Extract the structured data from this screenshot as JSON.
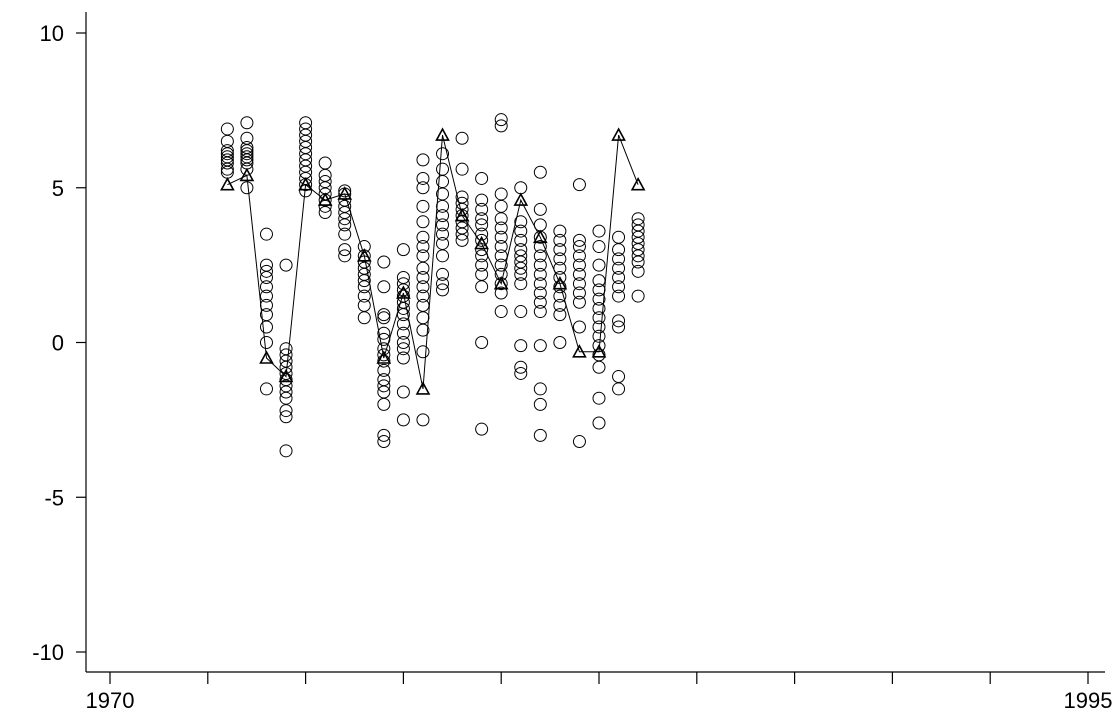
{
  "chart_data": {
    "type": "scatter",
    "title": "",
    "xlabel": "",
    "ylabel": "",
    "xlim": [
      1970,
      1995
    ],
    "ylim": [
      -10,
      10
    ],
    "x_ticks": [
      1970,
      1972.5,
      1975,
      1977.5,
      1980,
      1982.5,
      1985,
      1987.5,
      1990,
      1992.5,
      1995
    ],
    "x_tick_labels": [
      "1970",
      "",
      "",
      "",
      "",
      "",
      "",
      "",
      "",
      "",
      "1995"
    ],
    "y_ticks": [
      -10,
      -5,
      0,
      5,
      10
    ],
    "y_tick_labels": [
      "-10",
      "-5",
      "0",
      "5",
      "10"
    ],
    "grid": false,
    "legend": "none",
    "series": [
      {
        "marker": "circle",
        "points": [
          [
            1973,
            5.5
          ],
          [
            1973,
            5.6
          ],
          [
            1973,
            5.8
          ],
          [
            1973,
            5.9
          ],
          [
            1973,
            6.0
          ],
          [
            1973,
            6.1
          ],
          [
            1973,
            6.2
          ],
          [
            1973,
            6.5
          ],
          [
            1973,
            6.9
          ],
          [
            1973.5,
            5.0
          ],
          [
            1973.5,
            5.6
          ],
          [
            1973.5,
            5.8
          ],
          [
            1973.5,
            5.9
          ],
          [
            1973.5,
            6.0
          ],
          [
            1973.5,
            6.1
          ],
          [
            1973.5,
            6.2
          ],
          [
            1973.5,
            6.3
          ],
          [
            1973.5,
            6.6
          ],
          [
            1973.5,
            7.1
          ],
          [
            1974,
            -1.5
          ],
          [
            1974,
            0.0
          ],
          [
            1974,
            0.5
          ],
          [
            1974,
            0.9
          ],
          [
            1974,
            1.2
          ],
          [
            1974,
            1.5
          ],
          [
            1974,
            1.8
          ],
          [
            1974,
            2.1
          ],
          [
            1974,
            2.3
          ],
          [
            1974,
            2.5
          ],
          [
            1974,
            3.5
          ],
          [
            1974.5,
            -3.5
          ],
          [
            1974.5,
            -2.4
          ],
          [
            1974.5,
            -2.2
          ],
          [
            1974.5,
            -1.8
          ],
          [
            1974.5,
            -1.6
          ],
          [
            1974.5,
            -1.4
          ],
          [
            1974.5,
            -1.2
          ],
          [
            1974.5,
            -1.0
          ],
          [
            1974.5,
            -0.8
          ],
          [
            1974.5,
            -0.6
          ],
          [
            1974.5,
            -0.4
          ],
          [
            1974.5,
            -0.2
          ],
          [
            1974.5,
            2.5
          ],
          [
            1975,
            4.9
          ],
          [
            1975,
            5.1
          ],
          [
            1975,
            5.3
          ],
          [
            1975,
            5.5
          ],
          [
            1975,
            5.7
          ],
          [
            1975,
            5.9
          ],
          [
            1975,
            6.1
          ],
          [
            1975,
            6.3
          ],
          [
            1975,
            6.5
          ],
          [
            1975,
            6.7
          ],
          [
            1975,
            6.9
          ],
          [
            1975,
            7.1
          ],
          [
            1975.5,
            4.2
          ],
          [
            1975.5,
            4.4
          ],
          [
            1975.5,
            4.6
          ],
          [
            1975.5,
            4.8
          ],
          [
            1975.5,
            5.0
          ],
          [
            1975.5,
            5.2
          ],
          [
            1975.5,
            5.4
          ],
          [
            1975.5,
            5.8
          ],
          [
            1976,
            2.8
          ],
          [
            1976,
            3.0
          ],
          [
            1976,
            3.5
          ],
          [
            1976,
            3.8
          ],
          [
            1976,
            4.0
          ],
          [
            1976,
            4.2
          ],
          [
            1976,
            4.4
          ],
          [
            1976,
            4.6
          ],
          [
            1976,
            4.8
          ],
          [
            1976,
            4.9
          ],
          [
            1976.5,
            0.8
          ],
          [
            1976.5,
            1.2
          ],
          [
            1976.5,
            1.5
          ],
          [
            1976.5,
            1.8
          ],
          [
            1976.5,
            2.0
          ],
          [
            1976.5,
            2.2
          ],
          [
            1976.5,
            2.4
          ],
          [
            1976.5,
            2.6
          ],
          [
            1976.5,
            2.8
          ],
          [
            1976.5,
            3.1
          ],
          [
            1977,
            -3.2
          ],
          [
            1977,
            -3.0
          ],
          [
            1977,
            -2.0
          ],
          [
            1977,
            -1.6
          ],
          [
            1977,
            -1.4
          ],
          [
            1977,
            -1.2
          ],
          [
            1977,
            -0.9
          ],
          [
            1977,
            -0.6
          ],
          [
            1977,
            -0.4
          ],
          [
            1977,
            -0.2
          ],
          [
            1977,
            0.1
          ],
          [
            1977,
            0.3
          ],
          [
            1977,
            0.8
          ],
          [
            1977,
            0.9
          ],
          [
            1977,
            1.8
          ],
          [
            1977,
            2.6
          ],
          [
            1977.5,
            -2.5
          ],
          [
            1977.5,
            -1.6
          ],
          [
            1977.5,
            -0.5
          ],
          [
            1977.5,
            -0.2
          ],
          [
            1977.5,
            0.0
          ],
          [
            1977.5,
            0.3
          ],
          [
            1977.5,
            0.6
          ],
          [
            1977.5,
            0.9
          ],
          [
            1977.5,
            1.1
          ],
          [
            1977.5,
            1.3
          ],
          [
            1977.5,
            1.5
          ],
          [
            1977.5,
            1.7
          ],
          [
            1977.5,
            1.9
          ],
          [
            1977.5,
            2.1
          ],
          [
            1977.5,
            3.0
          ],
          [
            1978,
            -2.5
          ],
          [
            1978,
            -0.3
          ],
          [
            1978,
            0.4
          ],
          [
            1978,
            0.8
          ],
          [
            1978,
            1.2
          ],
          [
            1978,
            1.5
          ],
          [
            1978,
            1.8
          ],
          [
            1978,
            2.1
          ],
          [
            1978,
            2.4
          ],
          [
            1978,
            2.8
          ],
          [
            1978,
            3.1
          ],
          [
            1978,
            3.4
          ],
          [
            1978,
            3.9
          ],
          [
            1978,
            4.4
          ],
          [
            1978,
            5.0
          ],
          [
            1978,
            5.3
          ],
          [
            1978,
            5.9
          ],
          [
            1978.5,
            1.7
          ],
          [
            1978.5,
            1.9
          ],
          [
            1978.5,
            2.2
          ],
          [
            1978.5,
            2.8
          ],
          [
            1978.5,
            3.2
          ],
          [
            1978.5,
            3.5
          ],
          [
            1978.5,
            3.8
          ],
          [
            1978.5,
            4.1
          ],
          [
            1978.5,
            4.4
          ],
          [
            1978.5,
            4.8
          ],
          [
            1978.5,
            5.2
          ],
          [
            1978.5,
            5.6
          ],
          [
            1978.5,
            6.1
          ],
          [
            1979,
            3.3
          ],
          [
            1979,
            3.5
          ],
          [
            1979,
            3.7
          ],
          [
            1979,
            3.9
          ],
          [
            1979,
            4.1
          ],
          [
            1979,
            4.3
          ],
          [
            1979,
            4.5
          ],
          [
            1979,
            4.7
          ],
          [
            1979,
            5.6
          ],
          [
            1979,
            6.6
          ],
          [
            1979.5,
            -2.8
          ],
          [
            1979.5,
            0.0
          ],
          [
            1979.5,
            1.8
          ],
          [
            1979.5,
            2.2
          ],
          [
            1979.5,
            2.5
          ],
          [
            1979.5,
            2.8
          ],
          [
            1979.5,
            3.0
          ],
          [
            1979.5,
            3.3
          ],
          [
            1979.5,
            3.5
          ],
          [
            1979.5,
            3.8
          ],
          [
            1979.5,
            4.0
          ],
          [
            1979.5,
            4.3
          ],
          [
            1979.5,
            4.6
          ],
          [
            1979.5,
            5.3
          ],
          [
            1980,
            1.0
          ],
          [
            1980,
            1.6
          ],
          [
            1980,
            1.9
          ],
          [
            1980,
            2.2
          ],
          [
            1980,
            2.5
          ],
          [
            1980,
            2.8
          ],
          [
            1980,
            3.1
          ],
          [
            1980,
            3.4
          ],
          [
            1980,
            3.7
          ],
          [
            1980,
            4.0
          ],
          [
            1980,
            4.4
          ],
          [
            1980,
            4.8
          ],
          [
            1980,
            7.0
          ],
          [
            1980,
            7.2
          ],
          [
            1980.5,
            -1.0
          ],
          [
            1980.5,
            -0.8
          ],
          [
            1980.5,
            -0.1
          ],
          [
            1980.5,
            1.0
          ],
          [
            1980.5,
            1.9
          ],
          [
            1980.5,
            2.2
          ],
          [
            1980.5,
            2.4
          ],
          [
            1980.5,
            2.6
          ],
          [
            1980.5,
            2.8
          ],
          [
            1980.5,
            3.0
          ],
          [
            1980.5,
            3.3
          ],
          [
            1980.5,
            3.6
          ],
          [
            1980.5,
            3.9
          ],
          [
            1980.5,
            5.0
          ],
          [
            1981,
            -3.0
          ],
          [
            1981,
            -2.0
          ],
          [
            1981,
            -1.5
          ],
          [
            1981,
            -0.1
          ],
          [
            1981,
            1.0
          ],
          [
            1981,
            1.3
          ],
          [
            1981,
            1.6
          ],
          [
            1981,
            1.9
          ],
          [
            1981,
            2.2
          ],
          [
            1981,
            2.5
          ],
          [
            1981,
            2.8
          ],
          [
            1981,
            3.1
          ],
          [
            1981,
            3.4
          ],
          [
            1981,
            3.8
          ],
          [
            1981,
            4.3
          ],
          [
            1981,
            5.5
          ],
          [
            1981.5,
            0.0
          ],
          [
            1981.5,
            0.9
          ],
          [
            1981.5,
            1.2
          ],
          [
            1981.5,
            1.5
          ],
          [
            1981.5,
            1.8
          ],
          [
            1981.5,
            2.1
          ],
          [
            1981.5,
            2.4
          ],
          [
            1981.5,
            2.7
          ],
          [
            1981.5,
            3.0
          ],
          [
            1981.5,
            3.3
          ],
          [
            1981.5,
            3.6
          ],
          [
            1982,
            -3.2
          ],
          [
            1982,
            0.5
          ],
          [
            1982,
            1.3
          ],
          [
            1982,
            1.6
          ],
          [
            1982,
            1.9
          ],
          [
            1982,
            2.2
          ],
          [
            1982,
            2.5
          ],
          [
            1982,
            2.8
          ],
          [
            1982,
            3.1
          ],
          [
            1982,
            3.3
          ],
          [
            1982,
            5.1
          ],
          [
            1982.5,
            -2.6
          ],
          [
            1982.5,
            -1.8
          ],
          [
            1982.5,
            -0.8
          ],
          [
            1982.5,
            -0.4
          ],
          [
            1982.5,
            -0.1
          ],
          [
            1982.5,
            0.2
          ],
          [
            1982.5,
            0.5
          ],
          [
            1982.5,
            0.8
          ],
          [
            1982.5,
            1.1
          ],
          [
            1982.5,
            1.4
          ],
          [
            1982.5,
            1.7
          ],
          [
            1982.5,
            2.0
          ],
          [
            1982.5,
            2.5
          ],
          [
            1982.5,
            3.1
          ],
          [
            1982.5,
            3.6
          ],
          [
            1983,
            -1.5
          ],
          [
            1983,
            -1.1
          ],
          [
            1983,
            0.5
          ],
          [
            1983,
            0.7
          ],
          [
            1983,
            1.5
          ],
          [
            1983,
            1.8
          ],
          [
            1983,
            2.1
          ],
          [
            1983,
            2.4
          ],
          [
            1983,
            2.7
          ],
          [
            1983,
            3.0
          ],
          [
            1983,
            3.4
          ],
          [
            1983.5,
            1.5
          ],
          [
            1983.5,
            2.3
          ],
          [
            1983.5,
            2.6
          ],
          [
            1983.5,
            2.8
          ],
          [
            1983.5,
            3.0
          ],
          [
            1983.5,
            3.2
          ],
          [
            1983.5,
            3.4
          ],
          [
            1983.5,
            3.6
          ],
          [
            1983.5,
            3.8
          ],
          [
            1983.5,
            4.0
          ]
        ]
      },
      {
        "marker": "triangle",
        "connected": true,
        "points": [
          [
            1973,
            5.1
          ],
          [
            1973.5,
            5.4
          ],
          [
            1974,
            -0.5
          ],
          [
            1974.5,
            -1.1
          ],
          [
            1975,
            5.1
          ],
          [
            1975.5,
            4.6
          ],
          [
            1976,
            4.8
          ],
          [
            1976.5,
            2.8
          ],
          [
            1977,
            -0.5
          ],
          [
            1977.5,
            1.6
          ],
          [
            1978,
            -1.5
          ],
          [
            1978.5,
            6.7
          ],
          [
            1979,
            4.1
          ],
          [
            1979.5,
            3.2
          ],
          [
            1980,
            1.9
          ],
          [
            1980.5,
            4.6
          ],
          [
            1981,
            3.4
          ],
          [
            1981.5,
            1.9
          ],
          [
            1982,
            -0.3
          ],
          [
            1982.5,
            -0.3
          ],
          [
            1983,
            6.7
          ],
          [
            1983.5,
            5.1
          ]
        ]
      }
    ]
  }
}
